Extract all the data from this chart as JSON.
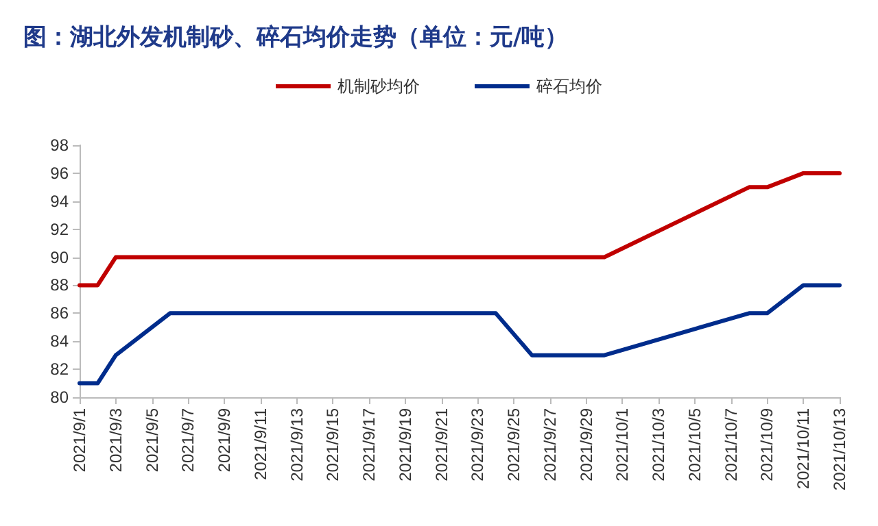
{
  "chart_data": {
    "type": "line",
    "title": "图：湖北外发机制砂、碎石均价走势（单位：元/吨）",
    "series": [
      {
        "name": "机制砂均价",
        "color": "#c00000",
        "x": [
          "2021-09-01",
          "2021-09-02",
          "2021-09-03",
          "2021-09-30",
          "2021-10-08",
          "2021-10-09",
          "2021-10-11",
          "2021-10-13"
        ],
        "values": [
          88,
          88,
          90,
          90,
          95,
          95,
          96,
          96
        ]
      },
      {
        "name": "碎石均价",
        "color": "#002c8c",
        "x": [
          "2021-09-01",
          "2021-09-02",
          "2021-09-03",
          "2021-09-06",
          "2021-09-24",
          "2021-09-26",
          "2021-09-30",
          "2021-10-08",
          "2021-10-09",
          "2021-10-11",
          "2021-10-13"
        ],
        "values": [
          81,
          81,
          83,
          86,
          86,
          83,
          83,
          86,
          86,
          88,
          88
        ]
      }
    ],
    "xlim": [
      "2021-09-01",
      "2021-10-13"
    ],
    "xticks": [
      {
        "value": "2021-09-01",
        "label": "2021/9/1"
      },
      {
        "value": "2021-09-03",
        "label": "2021/9/3"
      },
      {
        "value": "2021-09-05",
        "label": "2021/9/5"
      },
      {
        "value": "2021-09-07",
        "label": "2021/9/7"
      },
      {
        "value": "2021-09-09",
        "label": "2021/9/9"
      },
      {
        "value": "2021-09-11",
        "label": "2021/9/11"
      },
      {
        "value": "2021-09-13",
        "label": "2021/9/13"
      },
      {
        "value": "2021-09-15",
        "label": "2021/9/15"
      },
      {
        "value": "2021-09-17",
        "label": "2021/9/17"
      },
      {
        "value": "2021-09-19",
        "label": "2021/9/19"
      },
      {
        "value": "2021-09-21",
        "label": "2021/9/21"
      },
      {
        "value": "2021-09-23",
        "label": "2021/9/23"
      },
      {
        "value": "2021-09-25",
        "label": "2021/9/25"
      },
      {
        "value": "2021-09-27",
        "label": "2021/9/27"
      },
      {
        "value": "2021-09-29",
        "label": "2021/9/29"
      },
      {
        "value": "2021-10-01",
        "label": "2021/10/1"
      },
      {
        "value": "2021-10-03",
        "label": "2021/10/3"
      },
      {
        "value": "2021-10-05",
        "label": "2021/10/5"
      },
      {
        "value": "2021-10-07",
        "label": "2021/10/7"
      },
      {
        "value": "2021-10-09",
        "label": "2021/10/9"
      },
      {
        "value": "2021-10-11",
        "label": "2021/10/11"
      },
      {
        "value": "2021-10-13",
        "label": "2021/10/13"
      }
    ],
    "ylim": [
      80,
      98
    ],
    "yticks": [
      80,
      82,
      84,
      86,
      88,
      90,
      92,
      94,
      96,
      98
    ],
    "legend": "top",
    "grid": false,
    "marker": "none",
    "line_style": "solid"
  }
}
